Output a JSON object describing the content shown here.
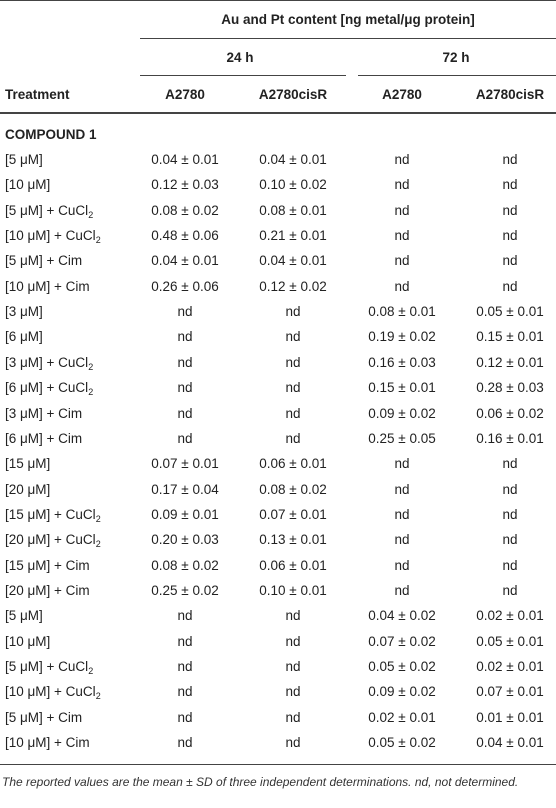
{
  "table": {
    "group_header": "Au and Pt content [ng metal/μg protein]",
    "time_headers": [
      "24 h",
      "72 h"
    ],
    "column_headers": [
      "Treatment",
      "A2780",
      "A2780cisR",
      "A2780",
      "A2780cisR"
    ],
    "section": "COMPOUND 1",
    "rows": [
      {
        "treatment": {
          "main": "[5 μM]"
        },
        "cells": [
          "0.04 ± 0.01",
          "0.04 ± 0.01",
          "nd",
          "nd"
        ]
      },
      {
        "treatment": {
          "main": "[10 μM]"
        },
        "cells": [
          "0.12 ± 0.03",
          "0.10 ± 0.02",
          "nd",
          "nd"
        ]
      },
      {
        "treatment": {
          "main": "[5 μM] + CuCl",
          "sub": "2"
        },
        "cells": [
          "0.08 ± 0.02",
          "0.08 ± 0.01",
          "nd",
          "nd"
        ]
      },
      {
        "treatment": {
          "main": "[10 μM] + CuCl",
          "sub": "2"
        },
        "cells": [
          "0.48 ± 0.06",
          "0.21 ± 0.01",
          "nd",
          "nd"
        ]
      },
      {
        "treatment": {
          "main": "[5 μM] + Cim"
        },
        "cells": [
          "0.04 ± 0.01",
          "0.04 ± 0.01",
          "nd",
          "nd"
        ]
      },
      {
        "treatment": {
          "main": "[10 μM] + Cim"
        },
        "cells": [
          "0.26 ± 0.06",
          "0.12 ± 0.02",
          "nd",
          "nd"
        ]
      },
      {
        "treatment": {
          "main": "[3 μM]"
        },
        "cells": [
          "nd",
          "nd",
          "0.08 ± 0.01",
          "0.05 ± 0.01"
        ]
      },
      {
        "treatment": {
          "main": "[6 μM]"
        },
        "cells": [
          "nd",
          "nd",
          "0.19 ± 0.02",
          "0.15 ± 0.01"
        ]
      },
      {
        "treatment": {
          "main": "[3 μM] + CuCl",
          "sub": "2"
        },
        "cells": [
          "nd",
          "nd",
          "0.16 ± 0.03",
          "0.12 ± 0.01"
        ]
      },
      {
        "treatment": {
          "main": "[6 μM] + CuCl",
          "sub": "2"
        },
        "cells": [
          "nd",
          "nd",
          "0.15 ± 0.01",
          "0.28 ± 0.03"
        ]
      },
      {
        "treatment": {
          "main": "[3 μM] + Cim"
        },
        "cells": [
          "nd",
          "nd",
          "0.09 ± 0.02",
          "0.06 ± 0.02"
        ]
      },
      {
        "treatment": {
          "main": "[6 μM] + Cim"
        },
        "cells": [
          "nd",
          "nd",
          "0.25 ± 0.05",
          "0.16 ± 0.01"
        ]
      },
      {
        "treatment": {
          "main": "[15 μM]"
        },
        "cells": [
          "0.07 ± 0.01",
          "0.06 ± 0.01",
          "nd",
          "nd"
        ]
      },
      {
        "treatment": {
          "main": "[20 μM]"
        },
        "cells": [
          "0.17 ± 0.04",
          "0.08 ± 0.02",
          "nd",
          "nd"
        ]
      },
      {
        "treatment": {
          "main": "[15 μM] + CuCl",
          "sub": "2"
        },
        "cells": [
          "0.09 ± 0.01",
          "0.07 ± 0.01",
          "nd",
          "nd"
        ]
      },
      {
        "treatment": {
          "main": "[20 μM] + CuCl",
          "sub": "2"
        },
        "cells": [
          "0.20 ± 0.03",
          "0.13 ± 0.01",
          "nd",
          "nd"
        ]
      },
      {
        "treatment": {
          "main": "[15 μM] + Cim"
        },
        "cells": [
          "0.08 ± 0.02",
          "0.06 ± 0.01",
          "nd",
          "nd"
        ]
      },
      {
        "treatment": {
          "main": "[20 μM] + Cim"
        },
        "cells": [
          "0.25 ± 0.02",
          "0.10 ± 0.01",
          "nd",
          "nd"
        ]
      },
      {
        "treatment": {
          "main": "[5 μM]"
        },
        "cells": [
          "nd",
          "nd",
          "0.04 ± 0.02",
          "0.02 ± 0.01"
        ]
      },
      {
        "treatment": {
          "main": "[10 μM]"
        },
        "cells": [
          "nd",
          "nd",
          "0.07 ± 0.02",
          "0.05 ± 0.01"
        ]
      },
      {
        "treatment": {
          "main": "[5 μM] + CuCl",
          "sub": "2"
        },
        "cells": [
          "nd",
          "nd",
          "0.05 ± 0.02",
          "0.02 ± 0.01"
        ]
      },
      {
        "treatment": {
          "main": "[10 μM] + CuCl",
          "sub": "2"
        },
        "cells": [
          "nd",
          "nd",
          "0.09 ± 0.02",
          "0.07 ± 0.01"
        ]
      },
      {
        "treatment": {
          "main": "[5 μM] + Cim"
        },
        "cells": [
          "nd",
          "nd",
          "0.02 ± 0.01",
          "0.01 ± 0.01"
        ]
      },
      {
        "treatment": {
          "main": "[10 μM] + Cim"
        },
        "cells": [
          "nd",
          "nd",
          "0.05 ± 0.02",
          "0.04 ± 0.01"
        ]
      }
    ],
    "footnote": "The reported values are the mean ± SD of three independent determinations. nd, not determined."
  }
}
